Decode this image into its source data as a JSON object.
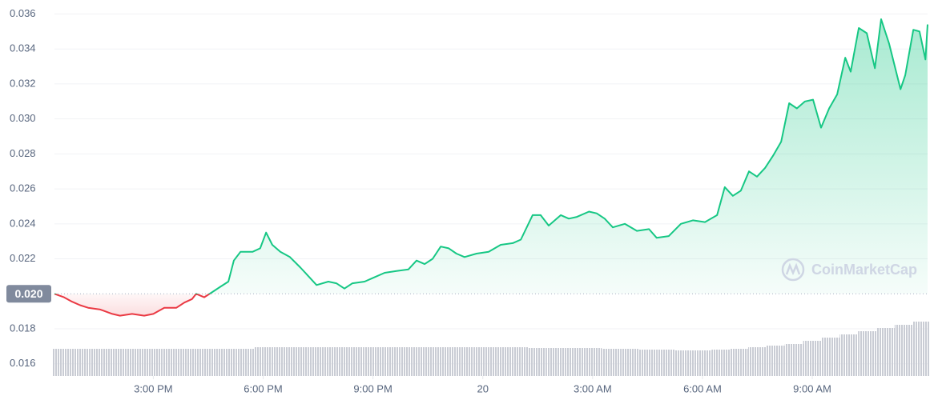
{
  "chart_data": {
    "type": "line",
    "x": [
      12.3,
      12.56,
      12.78,
      13.0,
      13.22,
      13.55,
      13.88,
      14.09,
      14.42,
      14.75,
      15.0,
      15.3,
      15.63,
      15.85,
      16.06,
      16.17,
      16.39,
      16.61,
      16.83,
      17.05,
      17.2,
      17.38,
      17.71,
      17.92,
      18.08,
      18.25,
      18.47,
      18.73,
      19.02,
      19.24,
      19.46,
      19.78,
      20.0,
      20.22,
      20.44,
      20.77,
      20.99,
      21.32,
      21.64,
      21.97,
      22.19,
      22.41,
      22.63,
      22.85,
      23.07,
      23.28,
      23.5,
      23.83,
      24.16,
      24.49,
      24.82,
      25.04,
      25.36,
      25.58,
      25.8,
      26.13,
      26.35,
      26.57,
      26.9,
      27.11,
      27.33,
      27.55,
      27.88,
      28.21,
      28.54,
      28.75,
      29.08,
      29.41,
      29.74,
      30.07,
      30.4,
      30.61,
      30.83,
      31.05,
      31.27,
      31.49,
      31.71,
      31.93,
      32.15,
      32.37,
      32.58,
      32.8,
      33.02,
      33.24,
      33.46,
      33.68,
      33.9,
      34.05,
      34.27,
      34.49,
      34.71,
      34.88,
      35.1,
      35.41,
      35.54,
      35.76,
      35.93,
      36.09,
      36.15
    ],
    "values": [
      0.02,
      0.0198,
      0.01955,
      0.01935,
      0.0192,
      0.0191,
      0.01885,
      0.01875,
      0.01885,
      0.01875,
      0.01885,
      0.0192,
      0.0192,
      0.0195,
      0.0197,
      0.02,
      0.0198,
      0.0201,
      0.0204,
      0.0207,
      0.0219,
      0.0224,
      0.0224,
      0.0226,
      0.0235,
      0.0228,
      0.0224,
      0.0221,
      0.0215,
      0.021,
      0.0205,
      0.0207,
      0.0206,
      0.0203,
      0.0206,
      0.0207,
      0.0209,
      0.0212,
      0.0213,
      0.0214,
      0.0219,
      0.0217,
      0.022,
      0.0227,
      0.0226,
      0.0223,
      0.0221,
      0.0223,
      0.0224,
      0.0228,
      0.0229,
      0.0231,
      0.0245,
      0.0245,
      0.0239,
      0.0245,
      0.0243,
      0.0244,
      0.0247,
      0.0246,
      0.0243,
      0.0238,
      0.024,
      0.0236,
      0.0237,
      0.0232,
      0.0233,
      0.024,
      0.0242,
      0.0241,
      0.0245,
      0.0261,
      0.0256,
      0.0259,
      0.027,
      0.0267,
      0.0272,
      0.0279,
      0.0287,
      0.0309,
      0.0306,
      0.031,
      0.0311,
      0.0295,
      0.0306,
      0.0314,
      0.0335,
      0.0327,
      0.0352,
      0.0349,
      0.0329,
      0.0357,
      0.0343,
      0.0317,
      0.0325,
      0.0351,
      0.035,
      0.0334,
      0.0354
    ],
    "color": "#16c784",
    "below_color": "#ea3943",
    "baseline": {
      "value": 0.02,
      "label": "0.020"
    },
    "volume": {
      "x": [
        12.5,
        13,
        13.5,
        14,
        14.5,
        15,
        15.5,
        16,
        16.5,
        17,
        17.5,
        18,
        18.5,
        19,
        19.5,
        20,
        20.5,
        21,
        21.5,
        22,
        22.5,
        23,
        23.5,
        24,
        24.5,
        25,
        25.5,
        26,
        26.5,
        27,
        27.5,
        28,
        28.5,
        29,
        29.5,
        30,
        30.5,
        31,
        31.5,
        32,
        32.5,
        33,
        33.5,
        34,
        34.5,
        35,
        35.5,
        36
      ],
      "values": [
        34,
        34,
        34,
        34,
        34,
        34,
        34,
        34,
        34,
        34,
        34,
        36,
        36,
        36,
        36,
        36,
        36,
        36,
        36,
        36,
        36,
        36,
        36,
        36,
        36,
        36,
        35,
        35,
        35,
        35,
        34,
        34,
        33,
        33,
        32,
        32,
        33,
        34,
        36,
        38,
        40,
        44,
        48,
        52,
        56,
        60,
        64,
        68
      ],
      "color": "#c9ccd4"
    },
    "xlim": [
      12.3,
      36.15
    ],
    "xticks": [
      {
        "value": 15,
        "label": "3:00 PM"
      },
      {
        "value": 18,
        "label": "6:00 PM"
      },
      {
        "value": 21,
        "label": "9:00 PM"
      },
      {
        "value": 24,
        "label": "20"
      },
      {
        "value": 27,
        "label": "3:00 AM"
      },
      {
        "value": 30,
        "label": "6:00 AM"
      },
      {
        "value": 33,
        "label": "9:00 AM"
      }
    ],
    "ylim": [
      0.0153,
      0.0368
    ],
    "yticks": [
      0.016,
      0.018,
      0.022,
      0.024,
      0.026,
      0.028,
      {
        "value": 0.03,
        "label": "0.030"
      },
      0.032,
      0.034,
      0.036
    ],
    "grid": true,
    "watermark": "CoinMarketCap"
  }
}
